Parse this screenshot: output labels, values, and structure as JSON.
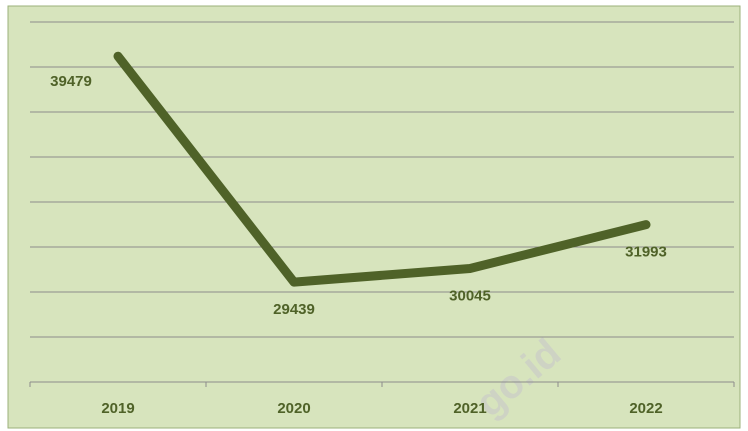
{
  "chart_data": {
    "type": "line",
    "categories": [
      "2019",
      "2020",
      "2021",
      "2022"
    ],
    "series": [
      {
        "name": null,
        "color": "#4f6228",
        "values": [
          39479,
          29439,
          30045,
          31993
        ]
      }
    ],
    "ylim": [
      25000,
      41000
    ],
    "yticks": [
      25000,
      27000,
      29000,
      31000,
      33000,
      35000,
      37000,
      39000,
      41000
    ],
    "grid": true,
    "watermark": "go.id"
  }
}
